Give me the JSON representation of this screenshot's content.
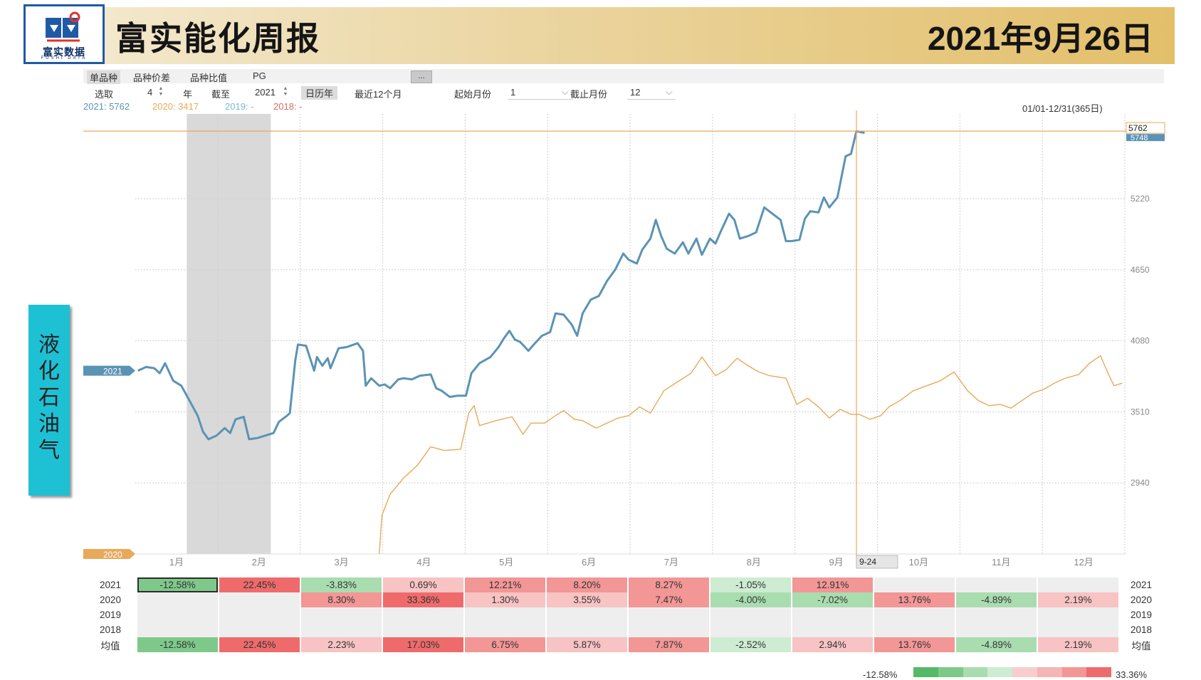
{
  "header": {
    "logo_text": "富实数据",
    "logo_sub": "FUSHI DATA",
    "title": "富实能化周报",
    "date": "2021年9月26日"
  },
  "toolbar": {
    "tabs": [
      "单品种",
      "品种价差",
      "品种比值",
      "PG"
    ],
    "ellipsis": "...",
    "select_label": "选取",
    "select_value": "4",
    "year_unit": "年",
    "until_label": "截至",
    "until_value": "2021",
    "calendar_year": "日历年",
    "recent_12": "最近12个月",
    "start_month_label": "起始月份",
    "start_month_value": "1",
    "end_month_label": "截止月份",
    "end_month_value": "12"
  },
  "legend": {
    "y2021": "2021: 5762",
    "y2020": "2020: 3417",
    "y2019": "2019: -",
    "y2018": "2018: -",
    "range": "01/01-12/31(365日)"
  },
  "side_label": "液\n化\n石\n油\n气",
  "markers": {
    "top_value": "5762",
    "top_value2": "5748",
    "tag_2021": "2021",
    "tag_2020": "2020",
    "date_tag": "9-24"
  },
  "chart_data": {
    "type": "line",
    "title": "",
    "xlabel": "",
    "ylabel": "",
    "x_ticks": [
      "1月",
      "2月",
      "3月",
      "4月",
      "5月",
      "6月",
      "7月",
      "8月",
      "9月",
      "10月",
      "11月",
      "12月"
    ],
    "y_ticks": [
      2940,
      3510,
      4080,
      4650,
      5220
    ],
    "ylim": [
      2370,
      5900
    ],
    "grid": true,
    "shaded_period": [
      "01-20",
      "02-20"
    ],
    "cursor_date": "09-24",
    "series": [
      {
        "name": "2021",
        "color": "#5b93b4",
        "points": [
          [
            "01-02",
            3840
          ],
          [
            "01-05",
            3870
          ],
          [
            "01-08",
            3860
          ],
          [
            "01-10",
            3820
          ],
          [
            "01-12",
            3900
          ],
          [
            "01-15",
            3760
          ],
          [
            "01-18",
            3720
          ],
          [
            "01-21",
            3600
          ],
          [
            "01-24",
            3480
          ],
          [
            "01-26",
            3350
          ],
          [
            "01-28",
            3290
          ],
          [
            "01-31",
            3320
          ],
          [
            "02-03",
            3380
          ],
          [
            "02-05",
            3340
          ],
          [
            "02-07",
            3450
          ],
          [
            "02-10",
            3470
          ],
          [
            "02-12",
            3290
          ],
          [
            "02-15",
            3300
          ],
          [
            "02-18",
            3320
          ],
          [
            "02-21",
            3340
          ],
          [
            "02-23",
            3430
          ],
          [
            "02-26",
            3480
          ],
          [
            "02-27",
            3500
          ],
          [
            "03-01",
            3920
          ],
          [
            "03-02",
            4050
          ],
          [
            "03-05",
            4040
          ],
          [
            "03-08",
            3840
          ],
          [
            "03-09",
            3950
          ],
          [
            "03-11",
            3880
          ],
          [
            "03-13",
            3940
          ],
          [
            "03-14",
            3860
          ],
          [
            "03-17",
            4020
          ],
          [
            "03-20",
            4030
          ],
          [
            "03-24",
            4060
          ],
          [
            "03-26",
            4000
          ],
          [
            "03-27",
            3720
          ],
          [
            "03-29",
            3780
          ],
          [
            "04-01",
            3720
          ],
          [
            "04-03",
            3730
          ],
          [
            "04-05",
            3700
          ],
          [
            "04-08",
            3770
          ],
          [
            "04-10",
            3780
          ],
          [
            "04-13",
            3770
          ],
          [
            "04-16",
            3800
          ],
          [
            "04-20",
            3810
          ],
          [
            "04-22",
            3700
          ],
          [
            "04-24",
            3680
          ],
          [
            "04-27",
            3630
          ],
          [
            "04-30",
            3640
          ],
          [
            "05-03",
            3640
          ],
          [
            "05-05",
            3820
          ],
          [
            "05-08",
            3900
          ],
          [
            "05-12",
            3950
          ],
          [
            "05-15",
            4030
          ],
          [
            "05-17",
            4100
          ],
          [
            "05-19",
            4160
          ],
          [
            "05-21",
            4090
          ],
          [
            "05-23",
            4070
          ],
          [
            "05-26",
            4000
          ],
          [
            "05-28",
            4050
          ],
          [
            "05-31",
            4120
          ],
          [
            "06-03",
            4150
          ],
          [
            "06-05",
            4300
          ],
          [
            "06-08",
            4290
          ],
          [
            "06-11",
            4210
          ],
          [
            "06-13",
            4120
          ],
          [
            "06-15",
            4300
          ],
          [
            "06-18",
            4410
          ],
          [
            "06-21",
            4440
          ],
          [
            "06-24",
            4560
          ],
          [
            "06-27",
            4650
          ],
          [
            "06-30",
            4780
          ],
          [
            "07-02",
            4730
          ],
          [
            "07-05",
            4700
          ],
          [
            "07-07",
            4810
          ],
          [
            "07-10",
            4900
          ],
          [
            "07-12",
            5050
          ],
          [
            "07-14",
            4920
          ],
          [
            "07-16",
            4820
          ],
          [
            "07-19",
            4780
          ],
          [
            "07-22",
            4870
          ],
          [
            "07-24",
            4780
          ],
          [
            "07-27",
            4900
          ],
          [
            "07-29",
            4770
          ],
          [
            "08-01",
            4900
          ],
          [
            "08-03",
            4860
          ],
          [
            "08-05",
            4960
          ],
          [
            "08-08",
            5100
          ],
          [
            "08-10",
            5050
          ],
          [
            "08-12",
            4900
          ],
          [
            "08-15",
            4920
          ],
          [
            "08-18",
            4950
          ],
          [
            "08-21",
            5150
          ],
          [
            "08-24",
            5100
          ],
          [
            "08-27",
            5050
          ],
          [
            "08-29",
            4880
          ],
          [
            "08-31",
            4880
          ],
          [
            "09-03",
            4890
          ],
          [
            "09-05",
            5060
          ],
          [
            "09-07",
            5120
          ],
          [
            "09-10",
            5110
          ],
          [
            "09-12",
            5230
          ],
          [
            "09-14",
            5150
          ],
          [
            "09-17",
            5230
          ],
          [
            "09-20",
            5560
          ],
          [
            "09-22",
            5580
          ],
          [
            "09-24",
            5762
          ],
          [
            "09-27",
            5748
          ]
        ]
      },
      {
        "name": "2020",
        "color": "#e8a95a",
        "points": [
          [
            "04-01",
            2370
          ],
          [
            "04-02",
            2680
          ],
          [
            "04-05",
            2850
          ],
          [
            "04-10",
            2980
          ],
          [
            "04-15",
            3080
          ],
          [
            "04-20",
            3230
          ],
          [
            "04-25",
            3200
          ],
          [
            "05-01",
            3210
          ],
          [
            "05-04",
            3500
          ],
          [
            "05-06",
            3560
          ],
          [
            "05-08",
            3400
          ],
          [
            "05-14",
            3440
          ],
          [
            "05-20",
            3470
          ],
          [
            "05-24",
            3330
          ],
          [
            "05-27",
            3420
          ],
          [
            "06-01",
            3420
          ],
          [
            "06-05",
            3480
          ],
          [
            "06-08",
            3520
          ],
          [
            "06-12",
            3450
          ],
          [
            "06-15",
            3440
          ],
          [
            "06-20",
            3380
          ],
          [
            "06-24",
            3420
          ],
          [
            "06-28",
            3460
          ],
          [
            "07-02",
            3480
          ],
          [
            "07-06",
            3550
          ],
          [
            "07-10",
            3500
          ],
          [
            "07-15",
            3680
          ],
          [
            "07-20",
            3750
          ],
          [
            "07-25",
            3820
          ],
          [
            "07-29",
            3950
          ],
          [
            "08-03",
            3800
          ],
          [
            "08-07",
            3850
          ],
          [
            "08-11",
            3940
          ],
          [
            "08-15",
            3880
          ],
          [
            "08-19",
            3830
          ],
          [
            "08-23",
            3800
          ],
          [
            "08-29",
            3780
          ],
          [
            "09-02",
            3570
          ],
          [
            "09-06",
            3620
          ],
          [
            "09-10",
            3550
          ],
          [
            "09-14",
            3460
          ],
          [
            "09-18",
            3530
          ],
          [
            "09-22",
            3490
          ],
          [
            "09-25",
            3490
          ],
          [
            "09-29",
            3450
          ],
          [
            "10-03",
            3480
          ],
          [
            "10-06",
            3550
          ],
          [
            "10-10",
            3600
          ],
          [
            "10-15",
            3680
          ],
          [
            "10-20",
            3720
          ],
          [
            "10-25",
            3760
          ],
          [
            "10-30",
            3830
          ],
          [
            "11-04",
            3680
          ],
          [
            "11-08",
            3600
          ],
          [
            "11-12",
            3560
          ],
          [
            "11-16",
            3570
          ],
          [
            "11-20",
            3540
          ],
          [
            "11-24",
            3600
          ],
          [
            "11-28",
            3660
          ],
          [
            "12-02",
            3690
          ],
          [
            "12-06",
            3740
          ],
          [
            "12-10",
            3780
          ],
          [
            "12-15",
            3810
          ],
          [
            "12-19",
            3900
          ],
          [
            "12-23",
            3960
          ],
          [
            "12-26",
            3810
          ],
          [
            "12-28",
            3720
          ],
          [
            "12-31",
            3740
          ]
        ]
      }
    ]
  },
  "table": {
    "months": [
      "1月",
      "2月",
      "3月",
      "4月",
      "5月",
      "6月",
      "7月",
      "8月",
      "9月",
      "10月",
      "11月",
      "12月"
    ],
    "rows": [
      {
        "label": "2021",
        "cells": [
          "-12.58%",
          "22.45%",
          "-3.83%",
          "0.69%",
          "12.21%",
          "8.20%",
          "8.27%",
          "-1.05%",
          "12.91%",
          "",
          "",
          ""
        ]
      },
      {
        "label": "2020",
        "cells": [
          "",
          "",
          "8.30%",
          "33.36%",
          "1.30%",
          "3.55%",
          "7.47%",
          "-4.00%",
          "-7.02%",
          "13.76%",
          "-4.89%",
          "2.19%"
        ]
      },
      {
        "label": "2019",
        "cells": [
          "",
          "",
          "",
          "",
          "",
          "",
          "",
          "",
          "",
          "",
          "",
          ""
        ]
      },
      {
        "label": "2018",
        "cells": [
          "",
          "",
          "",
          "",
          "",
          "",
          "",
          "",
          "",
          "",
          "",
          ""
        ]
      },
      {
        "label": "均值",
        "cells": [
          "-12.58%",
          "22.45%",
          "2.23%",
          "17.03%",
          "6.75%",
          "5.87%",
          "7.87%",
          "-2.52%",
          "2.94%",
          "13.76%",
          "-4.89%",
          "2.19%"
        ]
      }
    ],
    "scale_min": "-12.58%",
    "scale_max": "33.36%"
  },
  "colors": {
    "line_2021": "#5b93b4",
    "line_2020": "#e8a95a",
    "header_gold": "#e3bf6a",
    "side_label": "#1ec0d4",
    "negative": "#7ec98a",
    "positive": "#ef6b6b"
  }
}
